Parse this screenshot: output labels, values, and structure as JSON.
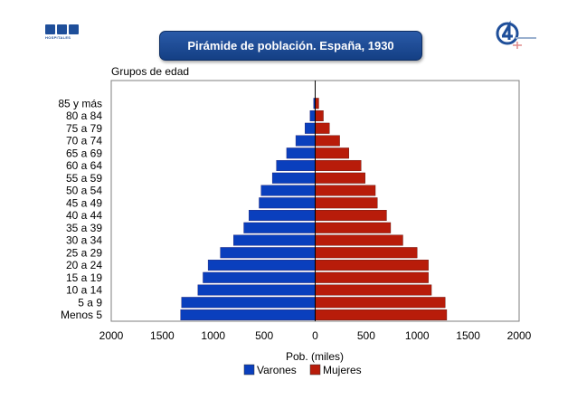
{
  "header": {
    "title": "Pirámide de población. España, 1930",
    "logo_left_text": "HOSPITALES"
  },
  "chart_data": {
    "type": "bar",
    "orientation": "horizontal-population-pyramid",
    "title": "Pirámide de población. España, 1930",
    "ylabel": "Grupos de edad",
    "xlabel": "Pob. (miles)",
    "xlim": [
      -2000,
      2000
    ],
    "x_ticks": [
      "2000",
      "1500",
      "1000",
      "500",
      "0",
      "500",
      "1000",
      "1500",
      "2000"
    ],
    "categories": [
      "Menos 5",
      "5 a 9",
      "10 a 14",
      "15 a 19",
      "20 a 24",
      "25 a 29",
      "30 a 34",
      "35 a 39",
      "40 a 44",
      "45 a 49",
      "50 a 54",
      "55 a 59",
      "60 a 64",
      "65 a 69",
      "70 a 74",
      "75 a 79",
      "80 a 84",
      "85 y más"
    ],
    "series": [
      {
        "name": "Varones",
        "color": "#0a3fbd",
        "values": [
          1320,
          1310,
          1150,
          1100,
          1050,
          930,
          800,
          700,
          650,
          550,
          530,
          420,
          380,
          280,
          190,
          100,
          50,
          15
        ]
      },
      {
        "name": "Mujeres",
        "color": "#b81c0a",
        "values": [
          1290,
          1275,
          1140,
          1110,
          1110,
          1000,
          860,
          740,
          700,
          610,
          590,
          490,
          450,
          330,
          240,
          140,
          80,
          35
        ]
      }
    ],
    "grid": false,
    "legend_position": "bottom"
  }
}
